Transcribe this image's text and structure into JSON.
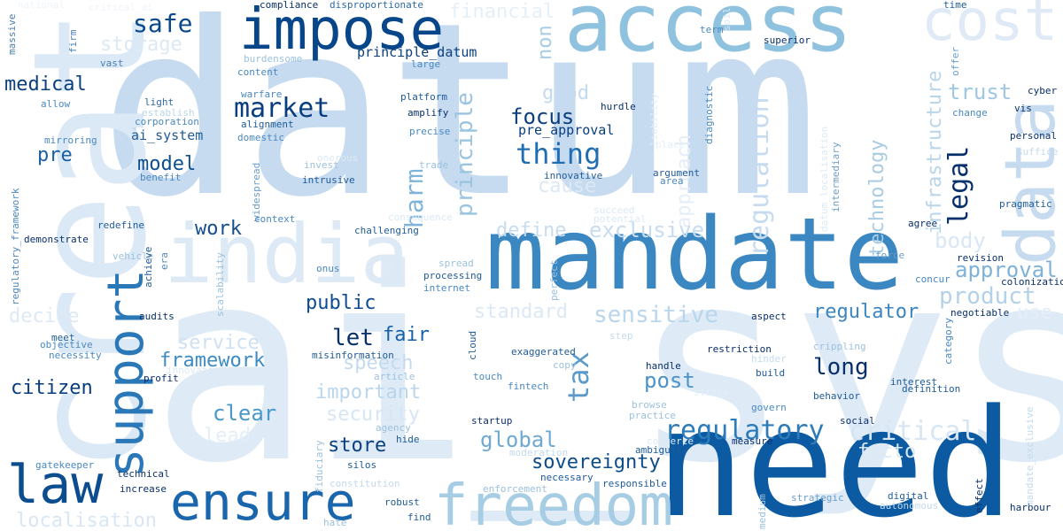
{
  "image": {
    "type": "word cloud",
    "background": "#ffffff",
    "palette": [
      "#c6dbef",
      "#9ecae1",
      "#6baed6",
      "#4292c6",
      "#2171b5",
      "#08519c",
      "#08306b"
    ]
  },
  "words": [
    {
      "text": "datum",
      "color": "#c6dbef"
    },
    {
      "text": "ai_system",
      "color": "#deebf7"
    },
    {
      "text": "create",
      "color": "#dbe9f6"
    },
    {
      "text": "need",
      "color": "#0b5aa2"
    },
    {
      "text": "mandate",
      "color": "#3b87c2"
    },
    {
      "text": "access",
      "color": "#8fc2de"
    },
    {
      "text": "data",
      "color": "#c6dbef"
    },
    {
      "text": "india",
      "color": "#dde9f5"
    },
    {
      "text": "impose",
      "color": "#08468a"
    },
    {
      "text": "cost",
      "color": "#dfeaf6"
    },
    {
      "text": "freedom",
      "color": "#a6cde3"
    },
    {
      "text": "ensure",
      "color": "#1a66ad"
    },
    {
      "text": "support",
      "color": "#2b78b9"
    },
    {
      "text": "law",
      "color": "#0b4d8f"
    },
    {
      "text": "regulatory",
      "color": "#2c7bba"
    },
    {
      "text": "legal",
      "color": "#08306b"
    },
    {
      "text": "market",
      "color": "#083d7f"
    },
    {
      "text": "thing",
      "color": "#1f6eb3"
    },
    {
      "text": "safe",
      "color": "#0a4a8c"
    },
    {
      "text": "medical",
      "color": "#0b3f7d"
    },
    {
      "text": "focus",
      "color": "#0b3f7d"
    },
    {
      "text": "model",
      "color": "#0e4f91"
    },
    {
      "text": "pre",
      "color": "#1b5fa6"
    },
    {
      "text": "work",
      "color": "#134f8f"
    },
    {
      "text": "public",
      "color": "#0e4c91"
    },
    {
      "text": "let",
      "color": "#08306b"
    },
    {
      "text": "fair",
      "color": "#1761a8"
    },
    {
      "text": "citizen",
      "color": "#083d7f"
    },
    {
      "text": "store",
      "color": "#0b3f7d"
    },
    {
      "text": "long",
      "color": "#08306b"
    },
    {
      "text": "post",
      "color": "#4b93c8"
    },
    {
      "text": "regulator",
      "color": "#3b85c0"
    },
    {
      "text": "sovereignty",
      "color": "#0c4c8a"
    },
    {
      "text": "framework",
      "color": "#3d8bc4"
    },
    {
      "text": "clear",
      "color": "#4a97c9"
    },
    {
      "text": "global",
      "color": "#6fa9d2"
    },
    {
      "text": "tax",
      "color": "#5b9bcc"
    },
    {
      "text": "critical",
      "color": "#d6e6f4"
    },
    {
      "text": "harm",
      "color": "#7fb3da"
    },
    {
      "text": "principle",
      "color": "#9ac4e0"
    },
    {
      "text": "technology",
      "color": "#a8cce4"
    },
    {
      "text": "infrastructure",
      "color": "#b8d5ea"
    },
    {
      "text": "regulation",
      "color": "#c6dbef"
    },
    {
      "text": "approach",
      "color": "#e4eef8"
    },
    {
      "text": "trust",
      "color": "#9dc7e2"
    },
    {
      "text": "product",
      "color": "#b3d1e8"
    },
    {
      "text": "approval",
      "color": "#7eb2d8"
    },
    {
      "text": "body",
      "color": "#d9e7f4"
    },
    {
      "text": "sensitive",
      "color": "#b9d6ec"
    },
    {
      "text": "exclusive",
      "color": "#c7dcef"
    },
    {
      "text": "define",
      "color": "#c7dcef"
    },
    {
      "text": "standard",
      "color": "#dce9f5"
    },
    {
      "text": "important",
      "color": "#b9d6ec"
    },
    {
      "text": "security",
      "color": "#d6e6f4"
    },
    {
      "text": "speech",
      "color": "#c4daee"
    },
    {
      "text": "service",
      "color": "#cfe0f1"
    },
    {
      "text": "lead",
      "color": "#e5eef8"
    },
    {
      "text": "storage",
      "color": "#dce9f5"
    },
    {
      "text": "good",
      "color": "#c4daee"
    },
    {
      "text": "cause",
      "color": "#dce9f5"
    },
    {
      "text": "decide",
      "color": "#dde9f5"
    },
    {
      "text": "localisation",
      "color": "#d9e7f4"
    },
    {
      "text": "use",
      "color": "#e5eef8"
    },
    {
      "text": "financial",
      "color": "#e6eff8"
    },
    {
      "text": "non",
      "color": "#a6cde3"
    },
    {
      "text": "pre_approval",
      "color": "#083d7f"
    },
    {
      "text": "principle_datum",
      "color": "#0b3f7d"
    },
    {
      "text": "ai_system",
      "color": "#1f5b99"
    },
    {
      "text": "compliance",
      "color": "#08306b"
    },
    {
      "text": "disproportionate",
      "color": "#2d6aa6"
    },
    {
      "text": "national",
      "color": "#eef4fb"
    },
    {
      "text": "critical_ai",
      "color": "#eef4fb"
    },
    {
      "text": "massive",
      "color": "#4a7fb3"
    },
    {
      "text": "firm",
      "color": "#4a7fb3"
    },
    {
      "text": "vast",
      "color": "#4a7fb3"
    },
    {
      "text": "burdensome",
      "color": "#9cc1de"
    },
    {
      "text": "content",
      "color": "#4a88c0"
    },
    {
      "text": "large",
      "color": "#4a88c0"
    },
    {
      "text": "light",
      "color": "#2f6aa8"
    },
    {
      "text": "establish",
      "color": "#bcd6ea"
    },
    {
      "text": "allow",
      "color": "#4a88c0"
    },
    {
      "text": "corporation",
      "color": "#4a88c0"
    },
    {
      "text": "mirroring",
      "color": "#4a88c0"
    },
    {
      "text": "warfare",
      "color": "#4a88c0"
    },
    {
      "text": "alignment",
      "color": "#1f5b99"
    },
    {
      "text": "domestic",
      "color": "#4a88c0"
    },
    {
      "text": "onerous",
      "color": "#dce9f5"
    },
    {
      "text": "invest",
      "color": "#9cc1de"
    },
    {
      "text": "intrusive",
      "color": "#1f5b99"
    },
    {
      "text": "benefit",
      "color": "#4a88c0"
    },
    {
      "text": "widespread",
      "color": "#6a9ecc"
    },
    {
      "text": "platform",
      "color": "#1f5b99"
    },
    {
      "text": "amplify",
      "color": "#08306b"
    },
    {
      "text": "precise",
      "color": "#4a88c0"
    },
    {
      "text": "trade",
      "color": "#9cc1de"
    },
    {
      "text": "hurdle",
      "color": "#08306b"
    },
    {
      "text": "innovative",
      "color": "#1f5b99"
    },
    {
      "text": "liability",
      "color": "#e4eef8"
    },
    {
      "text": "diagnostic",
      "color": "#4a88c0"
    },
    {
      "text": "argument",
      "color": "#1f5b99"
    },
    {
      "text": "area",
      "color": "#4a88c0"
    },
    {
      "text": "term",
      "color": "#4a88c0"
    },
    {
      "text": "soil",
      "color": "#dce9f5"
    },
    {
      "text": "superior",
      "color": "#08306b"
    },
    {
      "text": "time",
      "color": "#1f5b99"
    },
    {
      "text": "offer",
      "color": "#6a9ecc"
    },
    {
      "text": "change",
      "color": "#4a88c0"
    },
    {
      "text": "vis",
      "color": "#08306b"
    },
    {
      "text": "cyber",
      "color": "#08306b"
    },
    {
      "text": "personal",
      "color": "#08306b"
    },
    {
      "text": "suffice",
      "color": "#c4daee"
    },
    {
      "text": "pragmatic",
      "color": "#1f5b99"
    },
    {
      "text": "agree",
      "color": "#08306b"
    },
    {
      "text": "force",
      "color": "#6a9ecc"
    },
    {
      "text": "revision",
      "color": "#08306b"
    },
    {
      "text": "colonization",
      "color": "#08306b"
    },
    {
      "text": "concur",
      "color": "#4a88c0"
    },
    {
      "text": "negotiable",
      "color": "#08306b"
    },
    {
      "text": "datum_localisation",
      "color": "#dce9f5"
    },
    {
      "text": "intermediary",
      "color": "#6a9ecc"
    },
    {
      "text": "place",
      "color": "#e4eef8"
    },
    {
      "text": "consequence",
      "color": "#dce9f5"
    },
    {
      "text": "succeed",
      "color": "#dce9f5"
    },
    {
      "text": "potential",
      "color": "#dce9f5"
    },
    {
      "text": "challenging",
      "color": "#1f5b99"
    },
    {
      "text": "spread",
      "color": "#9cc1de"
    },
    {
      "text": "processing",
      "color": "#1f5b99"
    },
    {
      "text": "internet",
      "color": "#4a88c0"
    },
    {
      "text": "perfect",
      "color": "#9cc1de"
    },
    {
      "text": "onus",
      "color": "#4a88c0"
    },
    {
      "text": "context",
      "color": "#4a88c0"
    },
    {
      "text": "redefine",
      "color": "#1f5b99"
    },
    {
      "text": "demonstrate",
      "color": "#08306b"
    },
    {
      "text": "vehicle",
      "color": "#9cc1de"
    },
    {
      "text": "achieve",
      "color": "#1f5b99"
    },
    {
      "text": "era",
      "color": "#4a88c0"
    },
    {
      "text": "audits",
      "color": "#08306b"
    },
    {
      "text": "scalability",
      "color": "#9cc1de"
    },
    {
      "text": "regulatory_framework",
      "color": "#4a88c0"
    },
    {
      "text": "meet",
      "color": "#1f5b99"
    },
    {
      "text": "objective",
      "color": "#4a88c0"
    },
    {
      "text": "necessity",
      "color": "#4a88c0"
    },
    {
      "text": "misinformation",
      "color": "#1f5b99"
    },
    {
      "text": "profit",
      "color": "#08306b"
    },
    {
      "text": "innovation",
      "color": "#dce9f5"
    },
    {
      "text": "article",
      "color": "#9cc1de"
    },
    {
      "text": "copy",
      "color": "#9cc1de"
    },
    {
      "text": "exaggerated",
      "color": "#1f5b99"
    },
    {
      "text": "cloud",
      "color": "#1f5b99"
    },
    {
      "text": "touch",
      "color": "#4a88c0"
    },
    {
      "text": "fintech",
      "color": "#4a88c0"
    },
    {
      "text": "step",
      "color": "#c4daee"
    },
    {
      "text": "restriction",
      "color": "#08306b"
    },
    {
      "text": "hinder",
      "color": "#c4daee"
    },
    {
      "text": "crippling",
      "color": "#9cc1de"
    },
    {
      "text": "category",
      "color": "#4a88c0"
    },
    {
      "text": "aspect",
      "color": "#08306b"
    },
    {
      "text": "handle",
      "color": "#08306b"
    },
    {
      "text": "build",
      "color": "#1f5b99"
    },
    {
      "text": "interest",
      "color": "#1f5b99"
    },
    {
      "text": "definition",
      "color": "#1f5b99"
    },
    {
      "text": "behavior",
      "color": "#1f5b99"
    },
    {
      "text": "govern",
      "color": "#4a88c0"
    },
    {
      "text": "browse",
      "color": "#9cc1de"
    },
    {
      "text": "practice",
      "color": "#9cc1de"
    },
    {
      "text": "stifle",
      "color": "#e4eef8"
    },
    {
      "text": "social",
      "color": "#08306b"
    },
    {
      "text": "measure",
      "color": "#08306b"
    },
    {
      "text": "ambiguity",
      "color": "#1f5b99"
    },
    {
      "text": "commerce",
      "color": "#dce9f5"
    },
    {
      "text": "moderation",
      "color": "#c4daee"
    },
    {
      "text": "startup",
      "color": "#08306b"
    },
    {
      "text": "agency",
      "color": "#9cc1de"
    },
    {
      "text": "hide",
      "color": "#1f5b99"
    },
    {
      "text": "silos",
      "color": "#1f5b99"
    },
    {
      "text": "fiduciary",
      "color": "#9cc1de"
    },
    {
      "text": "gatekeeper",
      "color": "#4a88c0"
    },
    {
      "text": "technical",
      "color": "#08306b"
    },
    {
      "text": "increase",
      "color": "#08306b"
    },
    {
      "text": "constitution",
      "color": "#c4daee"
    },
    {
      "text": "enforcement",
      "color": "#9cc1de"
    },
    {
      "text": "necessary",
      "color": "#1f5b99"
    },
    {
      "text": "responsible",
      "color": "#1f5b99"
    },
    {
      "text": "robust",
      "color": "#1f5b99"
    },
    {
      "text": "find",
      "color": "#1f5b99"
    },
    {
      "text": "hate",
      "color": "#9cc1de"
    },
    {
      "text": "medium",
      "color": "#9cc1de"
    },
    {
      "text": "effect",
      "color": "#08306b"
    },
    {
      "text": "strategic",
      "color": "#6a9ecc"
    },
    {
      "text": "digital",
      "color": "#1f5b99"
    },
    {
      "text": "autonomous",
      "color": "#c4daee"
    },
    {
      "text": "harbour",
      "color": "#08306b"
    },
    {
      "text": "mandate_exclusive",
      "color": "#c4daee"
    },
    {
      "text": "facto",
      "color": "#dce9f5"
    }
  ]
}
